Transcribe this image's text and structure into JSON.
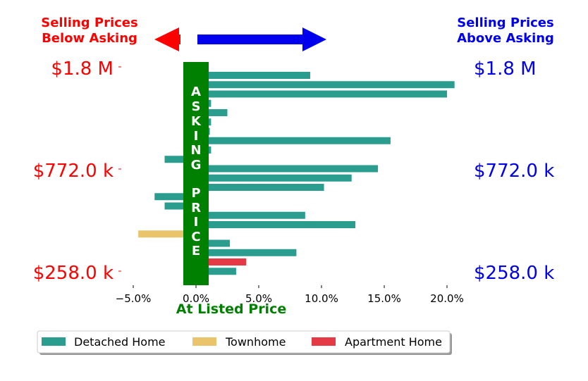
{
  "header": {
    "below_label_line1": "Selling Prices",
    "below_label_line2": "Below Asking",
    "above_label_line1": "Selling Prices",
    "above_label_line2": "Above Asking"
  },
  "asking_band_label": "ASKING PRICE",
  "xlabel": "At Listed Price",
  "colors": {
    "red": "#ff0000",
    "blue": "#0000ee",
    "green": "#008000",
    "detached": "#2a9d8f",
    "townhome": "#e9c46a",
    "apartment": "#e63946"
  },
  "chart_data": {
    "type": "bar",
    "orientation": "horizontal",
    "xlim": [
      -6.3,
      21.7
    ],
    "xticks": [
      -5,
      0,
      5,
      10,
      15,
      20
    ],
    "xtick_labels": [
      "−5.0%",
      "0.0%",
      "5.0%",
      "10.0%",
      "15.0%",
      "20.0%"
    ],
    "left_price_labels": [
      "$1.8 M",
      "$772.0 k",
      "$258.0 k"
    ],
    "right_price_labels": [
      "$1.8 M",
      "$772.0 k",
      "$258.0 k"
    ],
    "legend": [
      {
        "label": "Detached Home",
        "color_key": "detached"
      },
      {
        "label": "Townhome",
        "color_key": "townhome"
      },
      {
        "label": "Apartment Home",
        "color_key": "apartment"
      }
    ],
    "bars": [
      {
        "value": 9.1,
        "type": "detached"
      },
      {
        "value": 20.6,
        "type": "detached"
      },
      {
        "value": 20.0,
        "type": "detached"
      },
      {
        "value": 1.2,
        "type": "detached"
      },
      {
        "value": 2.5,
        "type": "detached"
      },
      {
        "value": 1.2,
        "type": "detached"
      },
      {
        "value": 1.1,
        "type": "detached"
      },
      {
        "value": 15.5,
        "type": "detached"
      },
      {
        "value": 1.2,
        "type": "detached"
      },
      {
        "value": -2.5,
        "type": "detached"
      },
      {
        "value": 14.5,
        "type": "detached"
      },
      {
        "value": 12.4,
        "type": "detached"
      },
      {
        "value": 10.2,
        "type": "detached"
      },
      {
        "value": -3.3,
        "type": "detached"
      },
      {
        "value": -2.5,
        "type": "detached"
      },
      {
        "value": 8.7,
        "type": "detached"
      },
      {
        "value": 12.7,
        "type": "detached"
      },
      {
        "value": -4.6,
        "type": "townhome"
      },
      {
        "value": 2.7,
        "type": "detached"
      },
      {
        "value": 8.0,
        "type": "detached"
      },
      {
        "value": 4.0,
        "type": "apartment"
      },
      {
        "value": 3.2,
        "type": "detached"
      }
    ]
  }
}
